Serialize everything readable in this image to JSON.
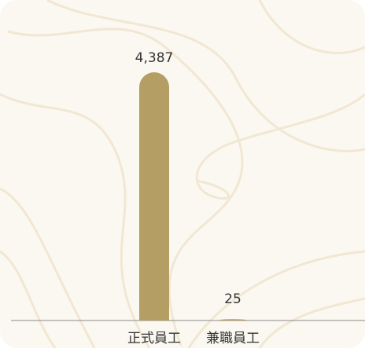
{
  "chart_data": {
    "type": "bar",
    "categories": [
      "正式員工",
      "兼職員工"
    ],
    "values": [
      4387,
      25
    ],
    "value_labels": [
      "4,387",
      "25"
    ],
    "color": "#b59e64"
  }
}
